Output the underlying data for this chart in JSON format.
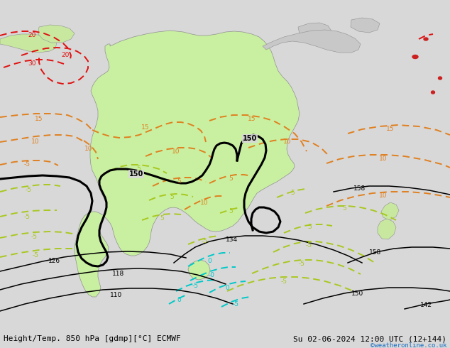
{
  "title_left": "Height/Temp. 850 hPa [gdmp][°C] ECMWF",
  "title_right": "Su 02-06-2024 12:00 UTC (12+144)",
  "watermark": "©weatheronline.co.uk",
  "bg_color": "#d8d8d8",
  "aus_fill": "#c8f0a0",
  "land_fill": "#c8c8c8",
  "aus_edge": "#909090",
  "black_lw": 2.2,
  "thin_lw": 1.1,
  "dash_lw": 1.4,
  "label_fs": 7,
  "title_fs": 8
}
